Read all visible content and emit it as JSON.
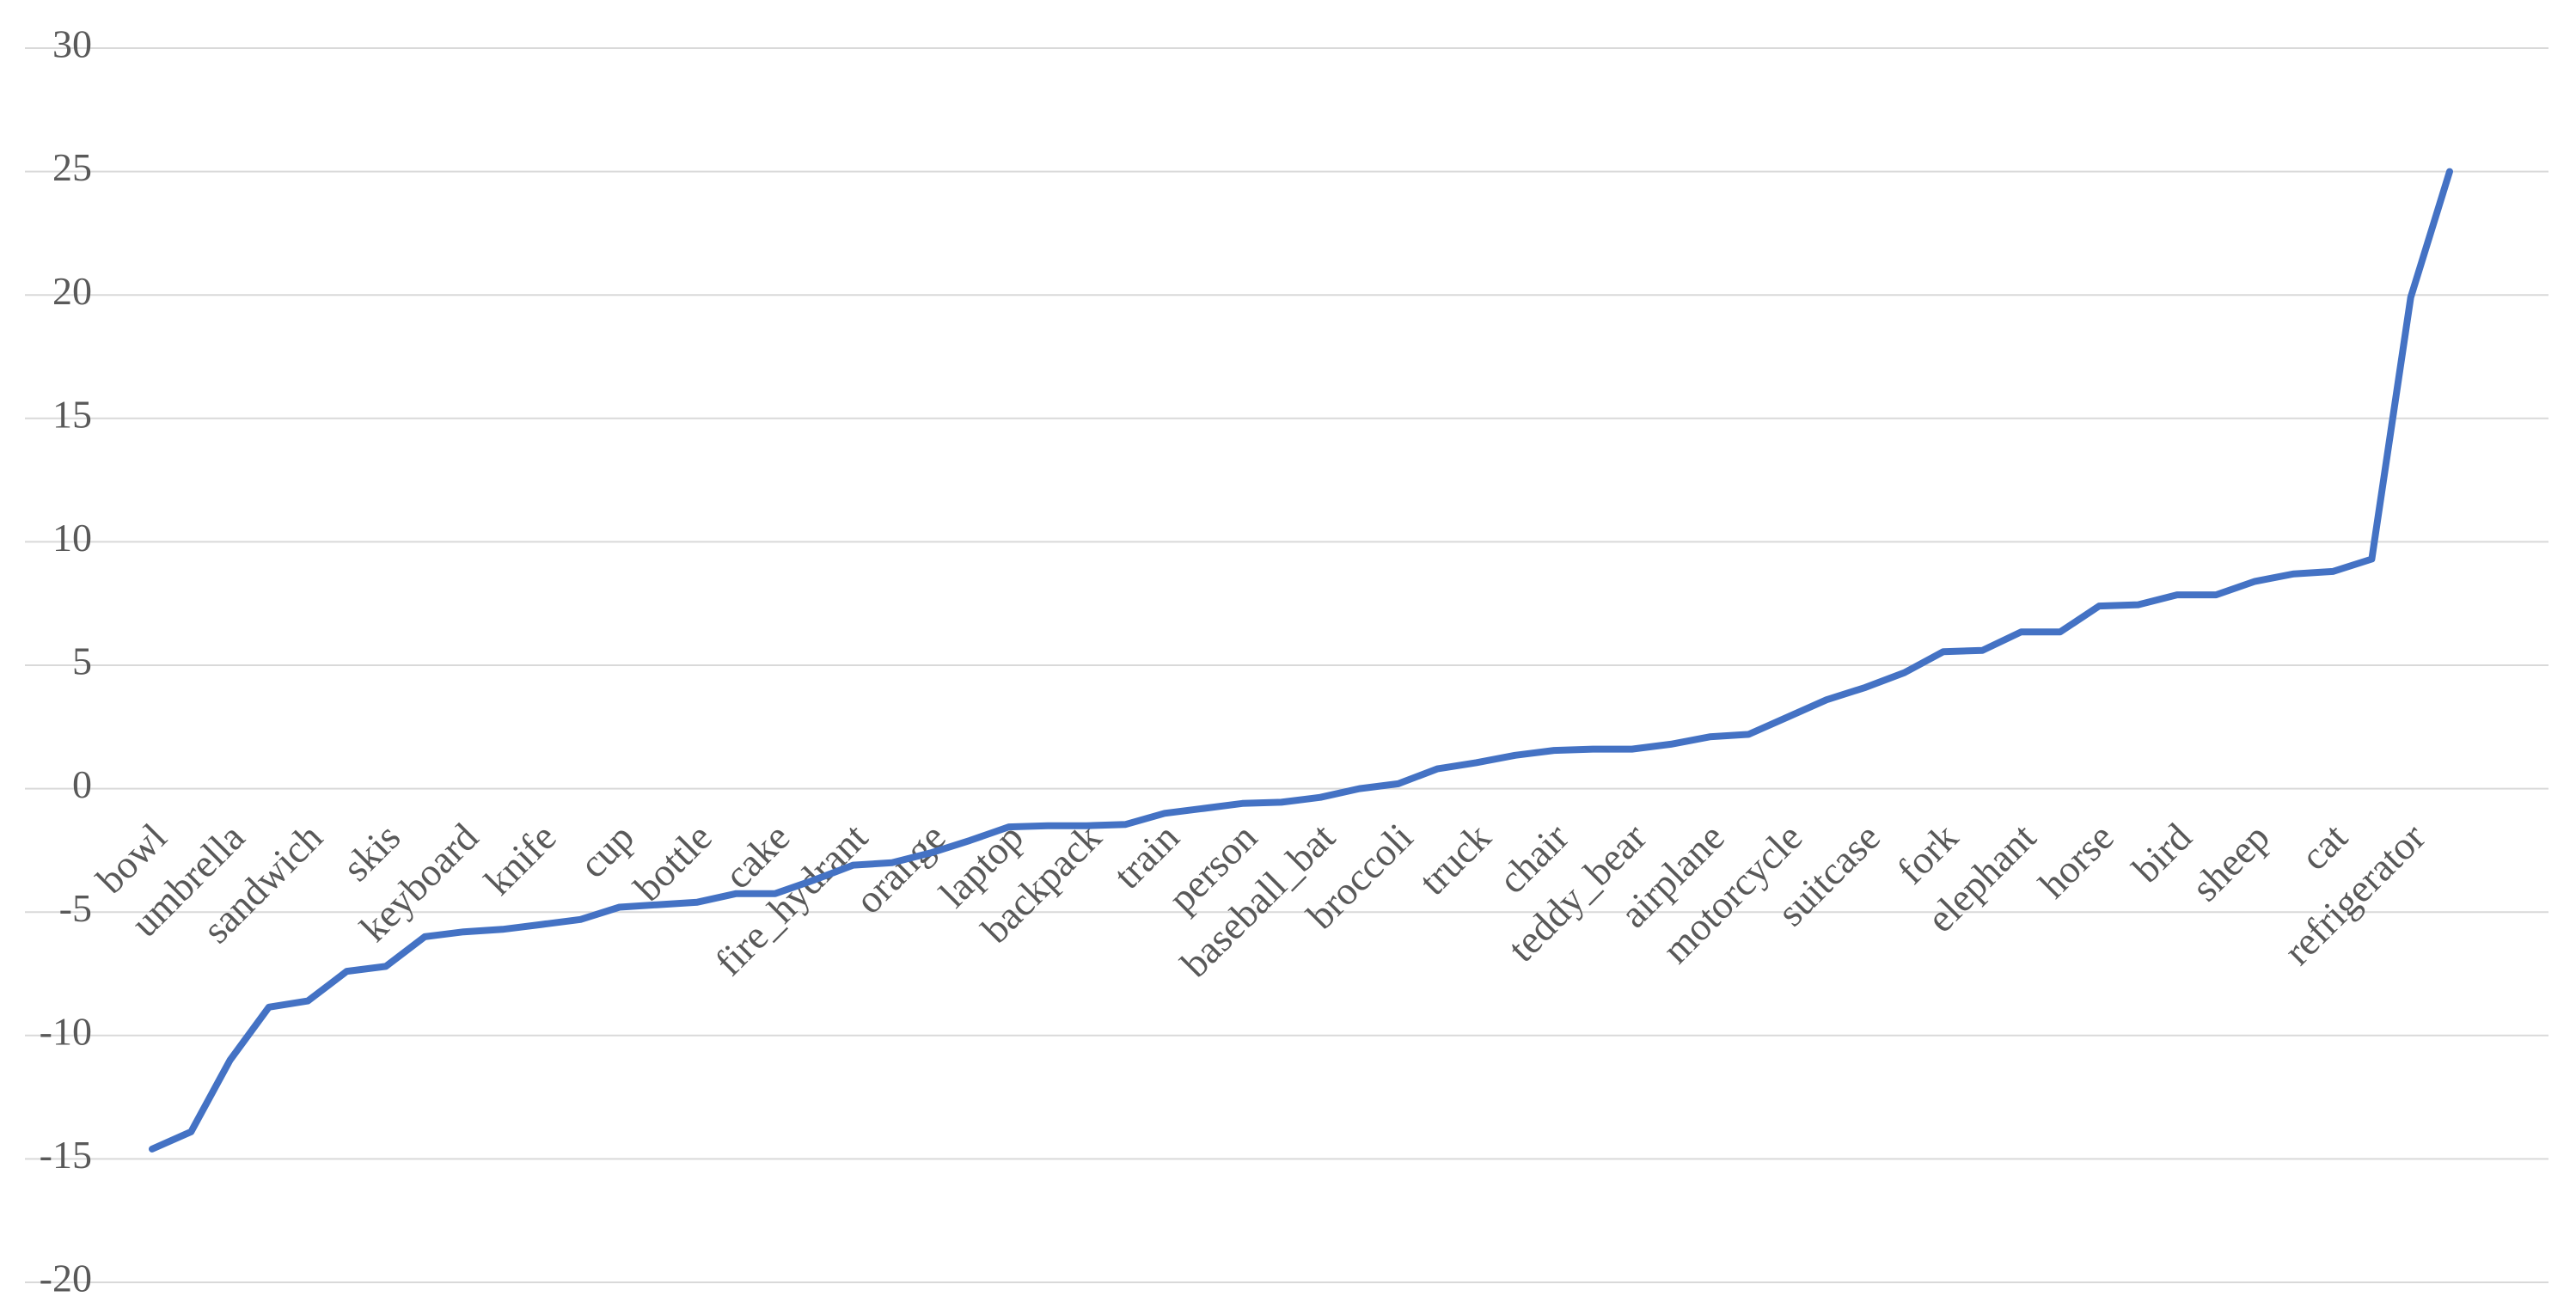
{
  "chart_data": {
    "type": "line",
    "categories": [
      "bowl",
      null,
      "umbrella",
      null,
      "sandwich",
      null,
      "skis",
      null,
      "keyboard",
      null,
      "knife",
      null,
      "cup",
      null,
      "bottle",
      null,
      "cake",
      null,
      "fire_hydrant",
      null,
      "orange",
      null,
      "laptop",
      null,
      "backpack",
      null,
      "train",
      null,
      "person",
      null,
      "baseball_bat",
      null,
      "broccoli",
      null,
      "truck",
      null,
      "chair",
      null,
      "teddy_bear",
      null,
      "airplane",
      null,
      "motorcycle",
      null,
      "suitcase",
      null,
      "fork",
      null,
      "elephant",
      null,
      "horse",
      null,
      "bird",
      null,
      "sheep",
      null,
      "cat",
      null,
      "refrigerator",
      null
    ],
    "series": [
      {
        "color": "#4472c4",
        "values": [
          -14.6,
          -13.9,
          -11.0,
          -8.85,
          -8.6,
          -7.4,
          -7.2,
          -6.0,
          -5.8,
          -5.7,
          -5.5,
          -5.3,
          -4.8,
          -4.7,
          -4.6,
          -4.25,
          -4.25,
          -3.7,
          -3.1,
          -3.0,
          -2.6,
          -2.1,
          -1.55,
          -1.5,
          -1.5,
          -1.45,
          -1.0,
          -0.8,
          -0.6,
          -0.55,
          -0.35,
          0.0,
          0.2,
          0.8,
          1.05,
          1.35,
          1.55,
          1.6,
          1.6,
          1.8,
          2.1,
          2.2,
          2.9,
          3.6,
          4.1,
          4.7,
          5.55,
          5.6,
          6.35,
          6.35,
          7.4,
          7.45,
          7.85,
          7.85,
          8.4,
          8.7,
          8.8,
          9.3,
          19.9,
          25.0
        ]
      }
    ],
    "ylim": [
      -20,
      30
    ],
    "yticks": [
      -20,
      -15,
      -10,
      -5,
      0,
      5,
      10,
      15,
      20,
      25,
      30
    ],
    "grid": true
  }
}
